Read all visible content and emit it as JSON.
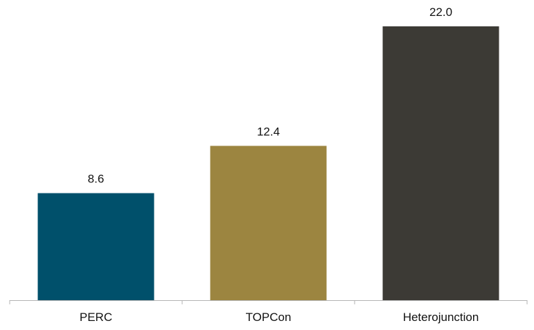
{
  "chart_data": {
    "type": "bar",
    "title": "",
    "xlabel": "",
    "ylabel": "",
    "categories": [
      "PERC",
      "TOPCon",
      "Heterojunction"
    ],
    "values": [
      8.6,
      12.4,
      22.0
    ],
    "value_labels": [
      "8.6",
      "12.4",
      "22.0"
    ],
    "ylim": [
      0,
      22.0
    ],
    "grid": false,
    "legend": "none",
    "colors": [
      "#00506b",
      "#9c8540",
      "#3c3a35"
    ],
    "axis_color": "#b3b3b3"
  }
}
